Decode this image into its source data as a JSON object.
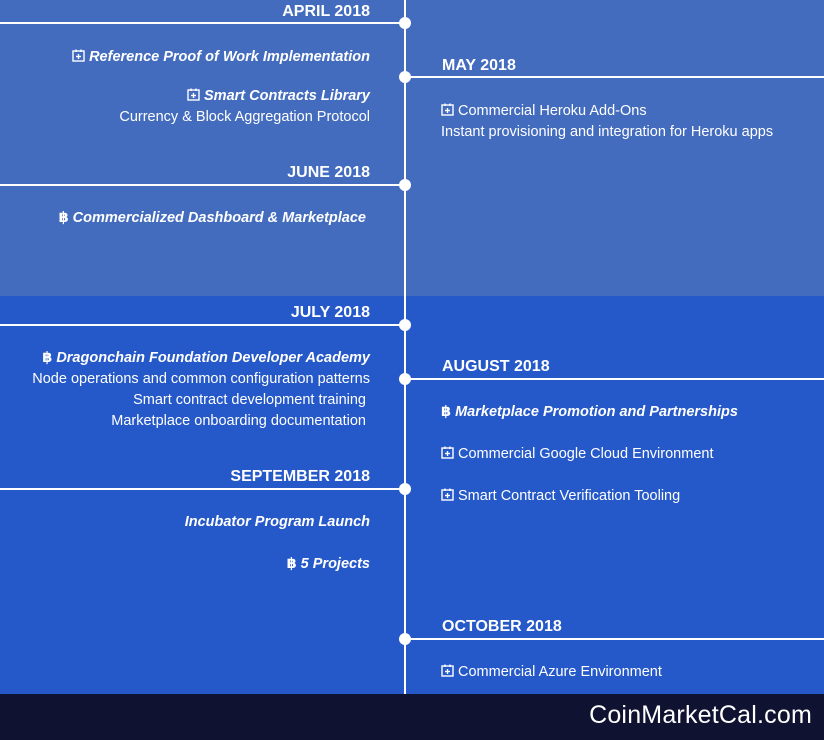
{
  "brand": "CoinMarketCal.com",
  "months": {
    "april": "APRIL 2018",
    "may": "MAY 2018",
    "june": "JUNE 2018",
    "july": "JULY 2018",
    "august": "AUGUST 2018",
    "september": "SEPTEMBER 2018",
    "october": "OCTOBER 2018"
  },
  "items": {
    "april_pow": "Reference Proof of Work Implementation",
    "april_sc": "Smart Contracts Library",
    "april_cb": "Currency & Block Aggregation Protocol",
    "may_heroku": "Commercial Heroku Add-Ons",
    "may_heroku_desc": "Instant provisioning and integration for Heroku apps",
    "june_dash": "Commercialized Dashboard & Marketplace",
    "july_academy": "Dragonchain Foundation Developer Academy",
    "july_node": "Node operations and common configuration patterns",
    "july_smart": "Smart contract development training",
    "july_market": "Marketplace onboarding documentation",
    "aug_promo": "Marketplace Promotion and Partnerships",
    "aug_gcloud": "Commercial Google Cloud Environment",
    "aug_verify": "Smart Contract Verification Tooling",
    "sep_incubator": "Incubator Program Launch",
    "sep_projects": "5 Projects",
    "oct_azure": "Commercial Azure Environment"
  },
  "icons": {
    "calendar": "calendar-plus-icon",
    "bitcoin": "bitcoin-icon"
  },
  "colors": {
    "band_top": "#436cbf",
    "band_mid": "#2558c8",
    "footer": "#0f1331"
  }
}
